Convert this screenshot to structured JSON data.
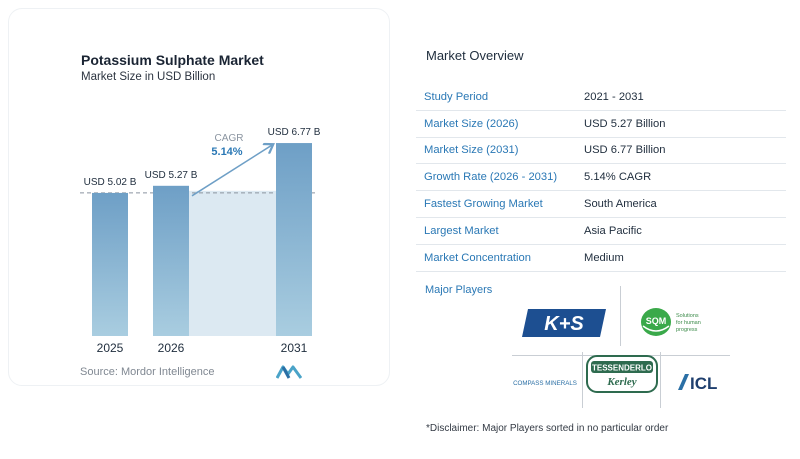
{
  "chart_data": {
    "type": "bar",
    "title": "Potassium Sulphate Market",
    "subtitle": "Market Size in USD Billion",
    "categories": [
      "2025",
      "2026",
      "2031"
    ],
    "values": [
      5.02,
      5.27,
      6.77
    ],
    "data_labels": [
      "USD 5.02 B",
      "USD 5.27 B",
      "USD 6.77 B"
    ],
    "cagr_label": "CAGR",
    "cagr_value": "5.14%",
    "source": "Source:  Mordor Intelligence",
    "bar_color": "#6e9fc6",
    "bar_color_bottom": "#a9cde0",
    "shade_color": "#dce9f2"
  },
  "overview": {
    "title": "Market Overview",
    "rows": [
      {
        "label": "Study Period",
        "value": "2021 - 2031"
      },
      {
        "label": "Market Size (2026)",
        "value": "USD 5.27 Billion"
      },
      {
        "label": "Market Size (2031)",
        "value": "USD 6.77 Billion"
      },
      {
        "label": "Growth Rate (2026 - 2031)",
        "value": "5.14% CAGR"
      },
      {
        "label": "Fastest Growing Market",
        "value": "South America"
      },
      {
        "label": "Largest Market",
        "value": "Asia Pacific"
      },
      {
        "label": "Market Concentration",
        "value": "Medium"
      }
    ]
  },
  "players": {
    "title": "Major Players",
    "logos": {
      "ks": "K+S",
      "sqm": "SQM",
      "sqm_tagline_1": "Solutions",
      "sqm_tagline_2": "for human",
      "sqm_tagline_3": "progress",
      "compass": "COMPASS MINERALS",
      "tessenderlo_1": "TESSENDERLO",
      "tessenderlo_2": "Kerley",
      "icl": "ICL"
    }
  },
  "disclaimer": "*Disclaimer: Major Players sorted in no particular order",
  "colors": {
    "accent": "#2a78b5",
    "ks_blue": "#1d4f91",
    "sqm_green": "#3aa94a",
    "tessenderlo_green": "#2e6b4f"
  }
}
